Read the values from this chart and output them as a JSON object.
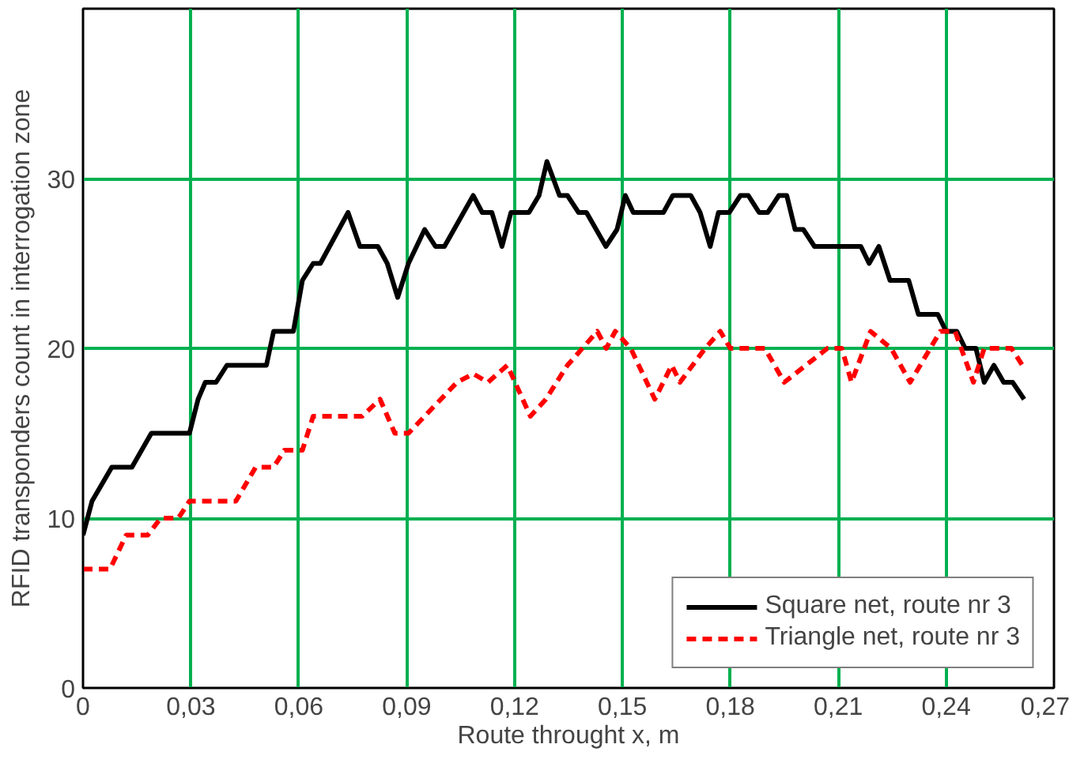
{
  "chart_data": {
    "type": "line",
    "xlabel": "Route throught x, m",
    "ylabel": "RFID transponders count in interrogation zone",
    "xlim": [
      0,
      0.27
    ],
    "ylim": [
      0,
      40
    ],
    "xticks": [
      0,
      {
        "value": 0.03,
        "label": "0,03"
      },
      {
        "value": 0.06,
        "label": "0,06"
      },
      {
        "value": 0.09,
        "label": "0,09"
      },
      {
        "value": 0.12,
        "label": "0,12"
      },
      {
        "value": 0.15,
        "label": "0,15"
      },
      {
        "value": 0.18,
        "label": "0,18"
      },
      {
        "value": 0.21,
        "label": "0,21"
      },
      {
        "value": 0.24,
        "label": "0,24"
      },
      {
        "value": 0.27,
        "label": "0,27"
      }
    ],
    "yticks": [
      0,
      10,
      20,
      30
    ],
    "grid": true,
    "legend": "bottom right",
    "marker": "none",
    "series": [
      {
        "name": "Square net, route nr 3",
        "color": "#000000",
        "line_style": "solid",
        "x": [
          0,
          0.0025,
          0.008,
          0.0136,
          0.019,
          0.0296,
          0.032,
          0.034,
          0.037,
          0.04,
          0.051,
          0.053,
          0.0585,
          0.061,
          0.064,
          0.066,
          0.0737,
          0.077,
          0.082,
          0.0846,
          0.0875,
          0.0905,
          0.095,
          0.098,
          0.1005,
          0.1085,
          0.111,
          0.1137,
          0.1165,
          0.119,
          0.124,
          0.1268,
          0.129,
          0.1325,
          0.1347,
          0.1378,
          0.14,
          0.1454,
          0.1485,
          0.1508,
          0.153,
          0.1614,
          0.164,
          0.169,
          0.1716,
          0.1744,
          0.1767,
          0.1797,
          0.1828,
          0.185,
          0.188,
          0.1904,
          0.1935,
          0.1957,
          0.198,
          0.2003,
          0.2034,
          0.2163,
          0.2186,
          0.2213,
          0.2244,
          0.2296,
          0.2323,
          0.2377,
          0.24,
          0.243,
          0.2453,
          0.2483,
          0.2506,
          0.2533,
          0.256,
          0.2585,
          0.2617
        ],
        "values": [
          9,
          11,
          13,
          13,
          15,
          15,
          17,
          18,
          18,
          19,
          19,
          21,
          21,
          24,
          25,
          25,
          28,
          26,
          26,
          25,
          23,
          25,
          27,
          26,
          26,
          29,
          28,
          28,
          26,
          28,
          28,
          29,
          31,
          29,
          29,
          28,
          28,
          26,
          27,
          29,
          28,
          28,
          29,
          29,
          28,
          26,
          28,
          28,
          29,
          29,
          28,
          28,
          29,
          29,
          27,
          27,
          26,
          26,
          25,
          26,
          24,
          24,
          22,
          22,
          21,
          21,
          20,
          20,
          18,
          19,
          18,
          18,
          17
        ]
      },
      {
        "name": "Triangle net, route nr 3",
        "color": "#ff0000",
        "line_style": "dashed",
        "x": [
          0,
          0.0075,
          0.012,
          0.018,
          0.0216,
          0.0265,
          0.0296,
          0.0425,
          0.048,
          0.053,
          0.056,
          0.061,
          0.064,
          0.0776,
          0.0826,
          0.0867,
          0.0905,
          0.095,
          0.104,
          0.1085,
          0.1126,
          0.118,
          0.1244,
          0.1287,
          0.1347,
          0.143,
          0.1455,
          0.148,
          0.1523,
          0.159,
          0.1637,
          0.166,
          0.173,
          0.1772,
          0.18,
          0.1896,
          0.195,
          0.201,
          0.207,
          0.211,
          0.2137,
          0.219,
          0.2247,
          0.23,
          0.2384,
          0.2425,
          0.2476,
          0.2506,
          0.2582,
          0.2612
        ],
        "values": [
          7,
          7,
          9,
          9,
          10,
          10,
          11,
          11,
          13,
          13,
          14,
          14,
          16,
          16,
          17,
          15,
          15,
          16,
          18,
          18.5,
          18,
          19,
          16,
          17,
          19,
          21,
          20,
          21,
          20,
          17,
          19,
          18,
          20,
          21,
          20,
          20,
          18,
          19,
          20,
          20,
          18,
          21,
          20,
          18,
          21,
          21,
          18,
          20,
          20,
          19
        ]
      }
    ]
  }
}
